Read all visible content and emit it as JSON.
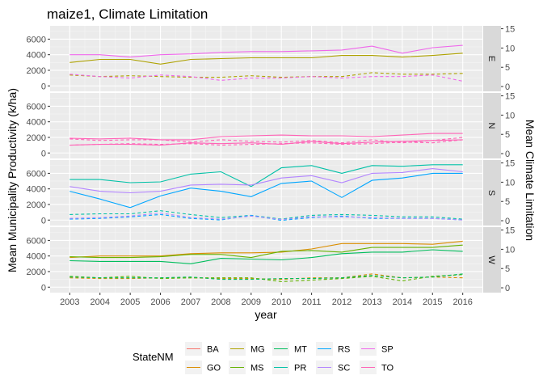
{
  "chart_data": {
    "type": "line",
    "title": "maize1, Climate Limitation",
    "xlabel": "year",
    "ylabel_left": "Mean Municipality Productivity (k/ha)",
    "ylabel_right": "Mean Climate Limitation",
    "x": [
      2003,
      2004,
      2005,
      2006,
      2007,
      2008,
      2009,
      2010,
      2011,
      2012,
      2013,
      2014,
      2015,
      2016
    ],
    "x_tick_labels": [
      "2003",
      "2004",
      "2005",
      "2006",
      "2007",
      "2008",
      "2009",
      "2010",
      "2011",
      "2012",
      "2013",
      "2014",
      "2015",
      "2016"
    ],
    "ylim_left": [
      -700,
      7700
    ],
    "ylim_right": [
      -1.25,
      15.75
    ],
    "left_ticks": [
      0,
      2000,
      4000,
      6000
    ],
    "left_tick_labels": [
      "0",
      "2000",
      "4000",
      "6000"
    ],
    "right_ticks": [
      0,
      5,
      10,
      15
    ],
    "right_tick_labels": [
      "0",
      "5",
      "10",
      "15"
    ],
    "grid": true,
    "line_styles": {
      "productivity": "solid",
      "climate_limitation": "dashed"
    },
    "legend": {
      "title": "StateNM",
      "position": "bottom",
      "entries": [
        {
          "name": "BA",
          "color": "#F8766D"
        },
        {
          "name": "GO",
          "color": "#DB8E00"
        },
        {
          "name": "MG",
          "color": "#AEA200"
        },
        {
          "name": "MS",
          "color": "#64B200"
        },
        {
          "name": "MT",
          "color": "#00BD5C"
        },
        {
          "name": "PR",
          "color": "#00C1A7"
        },
        {
          "name": "RS",
          "color": "#00A6FF"
        },
        {
          "name": "SC",
          "color": "#B385FF"
        },
        {
          "name": "SP",
          "color": "#EF67EB"
        },
        {
          "name": "TO",
          "color": "#FF63B6"
        }
      ]
    },
    "panels": [
      {
        "strip": "E",
        "series": [
          {
            "name": "MG",
            "color": "#AEA200",
            "productivity": [
              3000,
              3400,
              3400,
              2800,
              3400,
              3500,
              3600,
              3600,
              3600,
              3900,
              3900,
              3700,
              3900,
              4200
            ],
            "climate_limitation": [
              3.0,
              2.6,
              2.8,
              2.6,
              2.4,
              2.4,
              2.8,
              2.4,
              2.6,
              2.6,
              3.6,
              3.2,
              3.2,
              3.4
            ]
          },
          {
            "name": "SP",
            "color": "#EF67EB",
            "productivity": [
              4000,
              4000,
              3700,
              4000,
              4100,
              4300,
              4400,
              4400,
              4500,
              4600,
              5100,
              4200,
              4900,
              5200
            ],
            "climate_limitation": [
              3.2,
              2.6,
              2.2,
              3.0,
              2.6,
              1.6,
              2.2,
              2.2,
              2.6,
              2.2,
              2.6,
              2.6,
              3.0,
              1.4
            ]
          }
        ]
      },
      {
        "strip": "N",
        "series": [
          {
            "name": "TO",
            "color": "#FF63B6",
            "productivity": [
              1900,
              1800,
              1900,
              1700,
              1700,
              2100,
              2200,
              2300,
              2200,
              2200,
              2100,
              2300,
              2500,
              2500
            ],
            "climate_limitation": [
              3.8,
              3.4,
              3.6,
              3.6,
              3.0,
              3.6,
              3.2,
              3.0,
              3.4,
              2.8,
              3.6,
              2.8,
              3.4,
              4.2
            ]
          },
          {
            "name": "TO",
            "color": "#FF63B6",
            "productivity": [
              1000,
              1100,
              1100,
              1000,
              1300,
              1200,
              1300,
              1100,
              1500,
              1200,
              1400,
              1500,
              1600,
              1700
            ],
            "climate_limitation": [
              2.2,
              2.4,
              2.6,
              2.4,
              2.6,
              2.2,
              2.4,
              2.6,
              2.8,
              2.4,
              2.6,
              3.0,
              2.8,
              3.6
            ]
          }
        ]
      },
      {
        "strip": "S",
        "series": [
          {
            "name": "PR",
            "color": "#00C1A7",
            "productivity": [
              5200,
              5200,
              4800,
              4900,
              5900,
              6200,
              4300,
              6700,
              7000,
              6000,
              7000,
              6900,
              7100,
              7100
            ],
            "climate_limitation": [
              1.6,
              1.8,
              1.8,
              2.6,
              1.6,
              0.8,
              1.4,
              0.4,
              1.4,
              1.6,
              1.4,
              1.0,
              1.0,
              0.4
            ]
          },
          {
            "name": "RS",
            "color": "#00A6FF",
            "productivity": [
              3700,
              2700,
              1600,
              3100,
              4100,
              3700,
              3000,
              4700,
              5000,
              2900,
              5100,
              5400,
              6000,
              6000
            ],
            "climate_limitation": [
              0.4,
              0.6,
              1.0,
              1.6,
              0.6,
              0.2,
              1.4,
              0.1,
              0.8,
              1.2,
              0.6,
              0.6,
              0.6,
              0.2
            ]
          },
          {
            "name": "SC",
            "color": "#B385FF",
            "productivity": [
              4300,
              3700,
              3500,
              3700,
              4500,
              4600,
              4500,
              5400,
              5700,
              4800,
              6000,
              6100,
              6600,
              6200
            ],
            "climate_limitation": [
              0.6,
              0.8,
              1.2,
              2.0,
              0.8,
              0.4,
              1.2,
              0.3,
              1.0,
              1.0,
              0.8,
              0.6,
              0.6,
              0.2
            ]
          }
        ]
      },
      {
        "strip": "W",
        "series": [
          {
            "name": "GO",
            "color": "#DB8E00",
            "productivity": [
              3800,
              4000,
              4000,
              4000,
              4300,
              4400,
              4400,
              4500,
              4900,
              5600,
              5600,
              5600,
              5500,
              5900
            ],
            "climate_limitation": [
              2.6,
              2.4,
              2.4,
              2.6,
              2.6,
              2.4,
              2.4,
              2.2,
              2.6,
              2.6,
              3.6,
              2.6,
              2.8,
              2.6
            ]
          },
          {
            "name": "MS",
            "color": "#64B200",
            "productivity": [
              3900,
              3800,
              3800,
              3900,
              4200,
              4200,
              3800,
              4600,
              4700,
              4500,
              5100,
              5100,
              5100,
              5400
            ],
            "climate_limitation": [
              3.0,
              2.6,
              3.0,
              2.4,
              2.6,
              2.6,
              2.6,
              1.6,
              2.0,
              2.4,
              3.0,
              1.8,
              3.0,
              3.4
            ]
          },
          {
            "name": "MT",
            "color": "#00BD5C",
            "productivity": [
              3400,
              3300,
              3300,
              3300,
              3000,
              3700,
              3600,
              3500,
              3800,
              4300,
              4500,
              4500,
              4800,
              4600
            ],
            "climate_limitation": [
              2.8,
              2.6,
              2.6,
              2.6,
              2.8,
              2.2,
              2.2,
              2.4,
              2.4,
              2.6,
              3.2,
              2.6,
              2.8,
              3.6
            ]
          }
        ]
      }
    ]
  }
}
